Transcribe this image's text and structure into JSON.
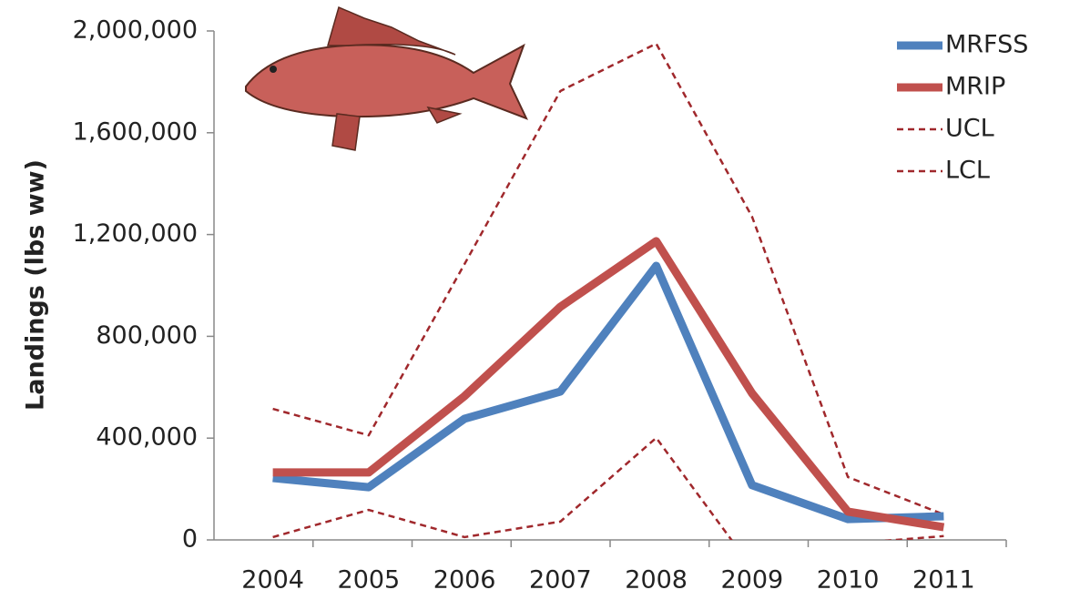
{
  "chart_data": {
    "type": "line",
    "y_label": "Landings (lbs ww)",
    "categories": [
      "2004",
      "2005",
      "2006",
      "2007",
      "2008",
      "2009",
      "2010",
      "2011"
    ],
    "series": [
      {
        "name": "MRFSS",
        "color": "#4f81bd",
        "dashed": false,
        "values": [
          243000,
          207000,
          476000,
          583000,
          1077000,
          215000,
          82000,
          93000
        ]
      },
      {
        "name": "MRIP",
        "color": "#c0504d",
        "dashed": false,
        "values": [
          265000,
          265000,
          565000,
          916000,
          1174000,
          576000,
          111000,
          50000
        ]
      },
      {
        "name": "UCL",
        "color": "#a0282c",
        "dashed": true,
        "values": [
          515000,
          411000,
          1084000,
          1764000,
          1950000,
          1270000,
          247000,
          100000
        ]
      },
      {
        "name": "LCL",
        "color": "#a0282c",
        "dashed": true,
        "values": [
          11000,
          118000,
          11000,
          72000,
          401000,
          -110000,
          -15000,
          15000
        ]
      }
    ],
    "ylim": [
      0,
      2000000
    ],
    "yticks": [
      {
        "value": 0,
        "label": "0"
      },
      {
        "value": 400000,
        "label": "400,000"
      },
      {
        "value": 800000,
        "label": "800,000"
      },
      {
        "value": 1200000,
        "label": "1,200,000"
      },
      {
        "value": 1600000,
        "label": "1,600,000"
      },
      {
        "value": 2000000,
        "label": "2,000,000"
      }
    ],
    "grid": false,
    "legend": "top-right"
  }
}
